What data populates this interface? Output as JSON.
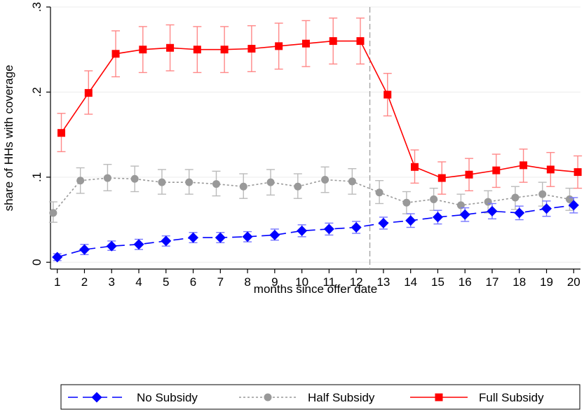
{
  "chart_data": {
    "type": "line",
    "title": "",
    "xlabel": "months since offer date",
    "ylabel": "share of HHs with coverage",
    "x": [
      1,
      2,
      3,
      4,
      5,
      6,
      7,
      8,
      9,
      10,
      11,
      12,
      13,
      14,
      15,
      16,
      17,
      18,
      19,
      20
    ],
    "xlim": [
      0.75,
      20.25
    ],
    "ylim": [
      -0.008,
      0.3
    ],
    "yticks": [
      0,
      0.1,
      0.2,
      0.3
    ],
    "ytick_labels": [
      "0",
      ".1",
      ".2",
      ".3"
    ],
    "vline": 12.5,
    "legend_position": "bottom",
    "series": [
      {
        "name": "No Subsidy",
        "color": "#0000ff",
        "errcolor": "#7777ff",
        "marker": "diamond",
        "dash": "long-dash",
        "x_offset": 0,
        "values": [
          0.006,
          0.015,
          0.019,
          0.021,
          0.025,
          0.029,
          0.029,
          0.03,
          0.032,
          0.037,
          0.039,
          0.041,
          0.046,
          0.049,
          0.053,
          0.056,
          0.06,
          0.058,
          0.063,
          0.067
        ],
        "ci_low": [
          0.002,
          0.009,
          0.014,
          0.015,
          0.019,
          0.023,
          0.023,
          0.024,
          0.026,
          0.03,
          0.032,
          0.034,
          0.039,
          0.041,
          0.045,
          0.048,
          0.051,
          0.05,
          0.054,
          0.058
        ],
        "ci_high": [
          0.01,
          0.021,
          0.025,
          0.027,
          0.031,
          0.035,
          0.035,
          0.036,
          0.039,
          0.044,
          0.046,
          0.048,
          0.053,
          0.057,
          0.061,
          0.064,
          0.069,
          0.066,
          0.072,
          0.076
        ]
      },
      {
        "name": "Half Subsidy",
        "color": "#999999",
        "errcolor": "#bbbbbb",
        "marker": "circle",
        "dash": "dotted",
        "x_offset": -0.15,
        "values": [
          0.058,
          0.096,
          0.099,
          0.098,
          0.094,
          0.094,
          0.092,
          0.089,
          0.094,
          0.089,
          0.097,
          0.095,
          0.082,
          0.07,
          0.074,
          0.067,
          0.071,
          0.076,
          0.08,
          0.074
        ],
        "ci_low": [
          0.047,
          0.081,
          0.084,
          0.083,
          0.08,
          0.08,
          0.078,
          0.075,
          0.079,
          0.075,
          0.082,
          0.08,
          0.069,
          0.057,
          0.061,
          0.055,
          0.058,
          0.062,
          0.066,
          0.061
        ],
        "ci_high": [
          0.071,
          0.111,
          0.115,
          0.113,
          0.109,
          0.109,
          0.107,
          0.104,
          0.109,
          0.104,
          0.112,
          0.11,
          0.096,
          0.083,
          0.087,
          0.08,
          0.084,
          0.089,
          0.094,
          0.087
        ]
      },
      {
        "name": "Full Subsidy",
        "color": "#ff0000",
        "errcolor": "#ff8888",
        "marker": "square",
        "dash": "solid",
        "x_offset": 0.15,
        "values": [
          0.152,
          0.199,
          0.245,
          0.25,
          0.252,
          0.25,
          0.25,
          0.251,
          0.254,
          0.257,
          0.26,
          0.26,
          0.197,
          0.112,
          0.099,
          0.103,
          0.108,
          0.114,
          0.109,
          0.106
        ],
        "ci_low": [
          0.13,
          0.174,
          0.218,
          0.223,
          0.225,
          0.223,
          0.223,
          0.224,
          0.227,
          0.23,
          0.233,
          0.233,
          0.172,
          0.093,
          0.08,
          0.084,
          0.088,
          0.094,
          0.089,
          0.087
        ],
        "ci_high": [
          0.175,
          0.225,
          0.272,
          0.277,
          0.279,
          0.277,
          0.277,
          0.278,
          0.281,
          0.284,
          0.287,
          0.287,
          0.222,
          0.132,
          0.118,
          0.122,
          0.127,
          0.133,
          0.129,
          0.125
        ]
      }
    ]
  }
}
